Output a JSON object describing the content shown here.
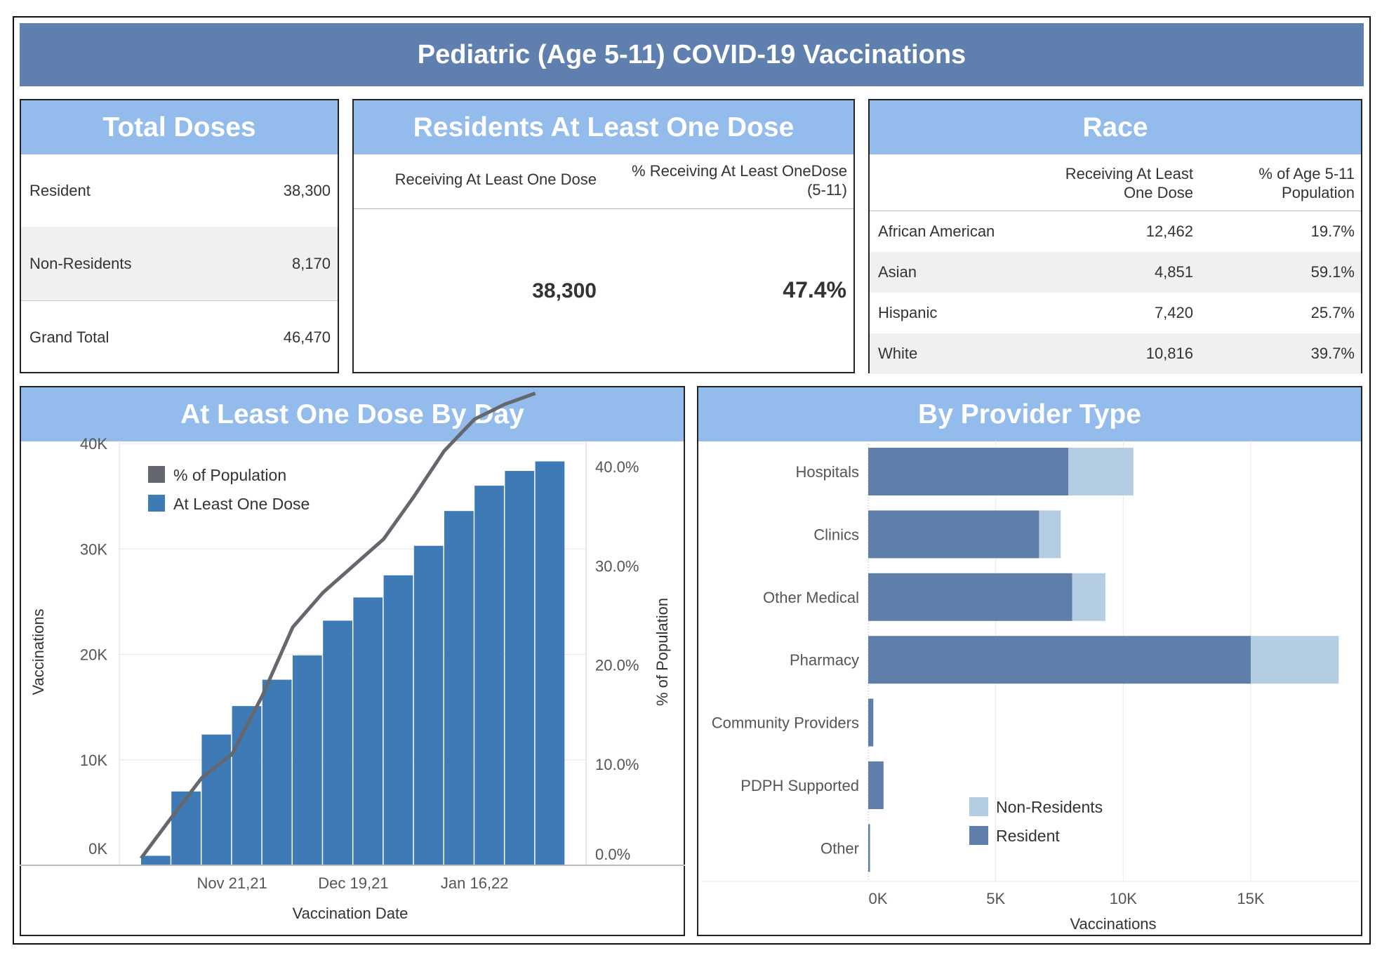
{
  "title": "Pediatric (Age 5-11) COVID-19 Vaccinations",
  "total_doses": {
    "header": "Total Doses",
    "rows": [
      {
        "label": "Resident",
        "value": "38,300"
      },
      {
        "label": "Non-Residents",
        "value": "8,170"
      },
      {
        "label": "Grand Total",
        "value": "46,470"
      }
    ]
  },
  "residents": {
    "header": "Residents At Least One Dose",
    "col1": "Receiving At Least One Dose",
    "col2_line1": "% Receiving At Least OneDose",
    "col2_line2": "(5-11)",
    "value1": "38,300",
    "value2": "47.4%"
  },
  "race": {
    "header": "Race",
    "col1_line1": "Receiving At Least",
    "col1_line2": "One Dose",
    "col2_line1": "% of Age 5-11",
    "col2_line2": "Population",
    "rows": [
      {
        "name": "African American",
        "count": "12,462",
        "pct": "19.7%"
      },
      {
        "name": "Asian",
        "count": "4,851",
        "pct": "59.1%"
      },
      {
        "name": "Hispanic",
        "count": "7,420",
        "pct": "25.7%"
      },
      {
        "name": "White",
        "count": "10,816",
        "pct": "39.7%"
      }
    ]
  },
  "chart_data": [
    {
      "type": "bar",
      "title": "At Least One Dose By Day",
      "xlabel": "Vaccination Date",
      "ylabel": "Vaccinations",
      "y2label": "% of Population",
      "ylim": [
        0,
        40000
      ],
      "y2lim": [
        0,
        0.4255
      ],
      "yticks": [
        "0K",
        "10K",
        "20K",
        "30K",
        "40K"
      ],
      "y2ticks": [
        "0.0%",
        "10.0%",
        "20.0%",
        "30.0%",
        "40.0%"
      ],
      "xtick_labels": [
        {
          "label": "Nov 21,21",
          "index": 3
        },
        {
          "label": "Dec 19,21",
          "index": 7
        },
        {
          "label": "Jan 16,22",
          "index": 11
        }
      ],
      "legend": [
        "% of Population",
        "At Least One Dose"
      ],
      "legend_position": "top-left",
      "series": [
        {
          "name": "At Least One Dose",
          "type": "bar",
          "color": "#3e7bb6",
          "values": [
            900,
            7000,
            12400,
            15100,
            17600,
            19900,
            23200,
            25400,
            27500,
            30300,
            33600,
            36000,
            37400,
            38300
          ]
        },
        {
          "name": "% of Population",
          "type": "line",
          "color": "#64676d",
          "values": [
            0.5,
            4.6,
            8.6,
            11.0,
            16.9,
            23.8,
            27.3,
            30.0,
            32.7,
            37.0,
            41.6,
            44.8,
            46.3,
            47.4
          ]
        }
      ]
    },
    {
      "type": "bar",
      "orientation": "horizontal",
      "stacked": true,
      "title": "By Provider Type",
      "xlabel": "Vaccinations",
      "xlim": [
        0,
        19000
      ],
      "xticks": [
        "0K",
        "5K",
        "10K",
        "15K"
      ],
      "categories": [
        "Hospitals",
        "Clinics",
        "Other Medical",
        "Pharmacy",
        "Community Providers",
        "PDPH Supported",
        "Other"
      ],
      "legend": [
        "Non-Residents",
        "Resident"
      ],
      "legend_position": "bottom-center",
      "series": [
        {
          "name": "Resident",
          "color": "#5f7fab",
          "values": [
            7850,
            6700,
            8000,
            15000,
            200,
            600,
            70
          ]
        },
        {
          "name": "Non-Residents",
          "color": "#b4cde2",
          "values": [
            2550,
            850,
            1300,
            3450,
            0,
            0,
            0
          ]
        }
      ]
    }
  ]
}
